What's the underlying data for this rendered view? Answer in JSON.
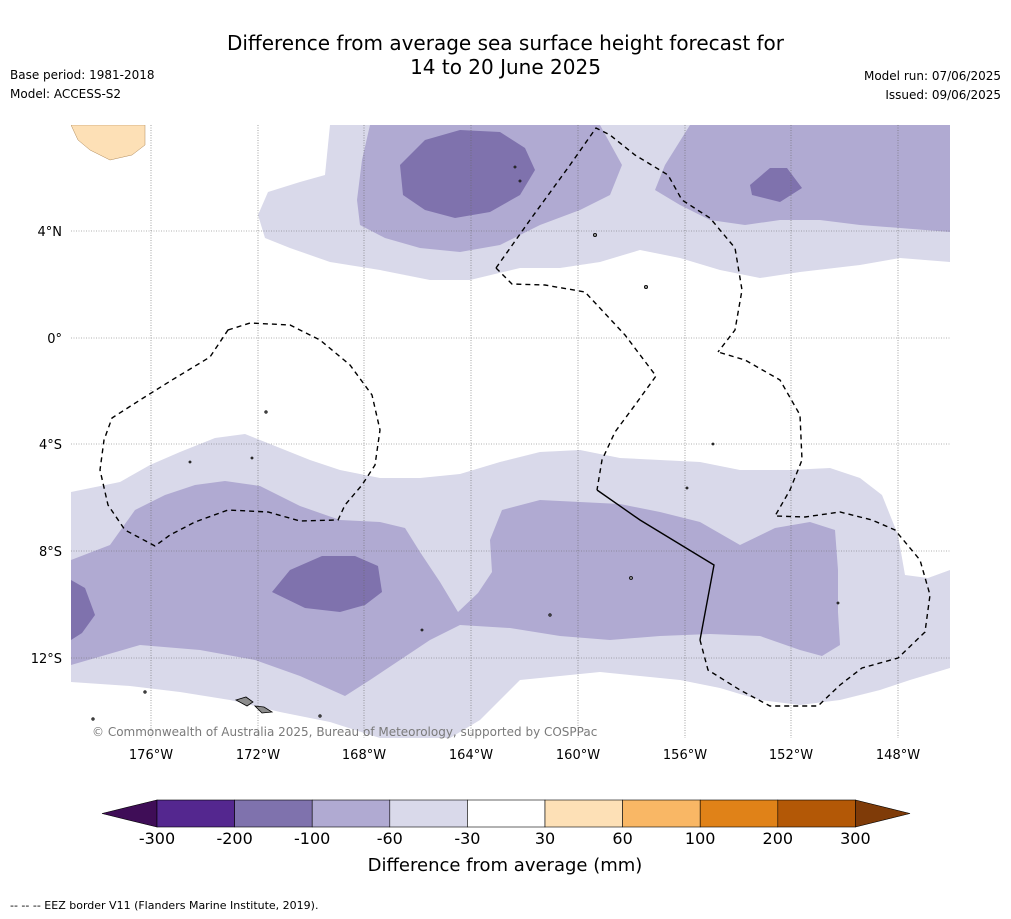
{
  "title": {
    "line1": "Difference from average sea surface height forecast for",
    "line2": "14 to 20 June 2025"
  },
  "meta": {
    "base_period": "Base period: 1981-2018",
    "model": "Model: ACCESS-S2",
    "model_run": "Model run: 07/06/2025",
    "issued": "Issued: 09/06/2025"
  },
  "map": {
    "lat_labels": [
      "4°N",
      "0°",
      "4°S",
      "8°S",
      "12°S"
    ],
    "lon_labels": [
      "176°W",
      "172°W",
      "168°W",
      "164°W",
      "160°W",
      "156°W",
      "152°W",
      "148°W"
    ],
    "copyright": "© Commonwealth of Australia 2025, Bureau of Meteorology, supported by COSPPac",
    "colors": {
      "-100_to_-60": "#b0aad2",
      "-200_to_-100": "#7f72ad",
      "-60_to_-30": "#d9d9ea",
      "30_to_60": "#fde0b6",
      "land": "#8c8c8c"
    }
  },
  "colorbar": {
    "labels": [
      "-300",
      "-200",
      "-100",
      "-60",
      "-30",
      "30",
      "60",
      "100",
      "200",
      "300"
    ],
    "colors": [
      "#3f0d57",
      "#54278f",
      "#7f72ad",
      "#b0aad2",
      "#d9d9ea",
      "#ffffff",
      "#fde0b6",
      "#f9b765",
      "#e08218",
      "#b35806",
      "#7f3b08"
    ],
    "label": "Difference from average (mm)"
  },
  "footer": "-- -- -- EEZ border V11 (Flanders Marine Institute, 2019)."
}
